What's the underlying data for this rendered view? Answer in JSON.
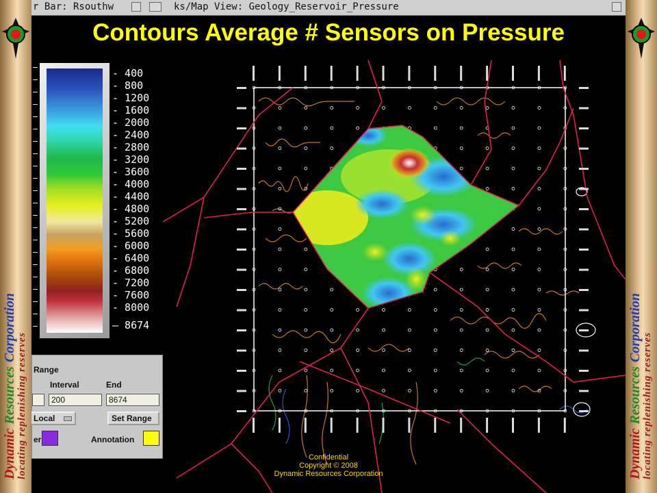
{
  "window": {
    "title_left": "r Bar: Rsouthw",
    "title_right": "ks/Map View: Geology_Reservoir_Pressure"
  },
  "slide": {
    "title": "Contours Average # Sensors on Pressure",
    "title_color": "#ffff00"
  },
  "side_banner": {
    "word1": "Dynamic",
    "word2": "Resources",
    "word3": "Corporation",
    "tagline": "locating replenishing reserves"
  },
  "legend": {
    "ticks": [
      "400",
      "800",
      "1200",
      "1600",
      "2000",
      "2400",
      "2800",
      "3200",
      "3600",
      "4000",
      "4400",
      "4800",
      "5200",
      "5600",
      "6000",
      "6400",
      "6800",
      "7200",
      "7600",
      "8000",
      "8674"
    ]
  },
  "range_panel": {
    "heading": "Range",
    "interval_label": "Interval",
    "end_label": "End",
    "interval_value": "200",
    "end_value": "8674",
    "mode_select": "Local",
    "set_range_button": "Set Range",
    "color_label": "er",
    "annotation_label": "Annotation",
    "color_swatch": "#8a2be2",
    "annotation_swatch": "#ffff00"
  },
  "footer": {
    "line1": "Confidential",
    "line2": "Copyright © 2008",
    "line3": "Dynamic Resources Corporation"
  }
}
